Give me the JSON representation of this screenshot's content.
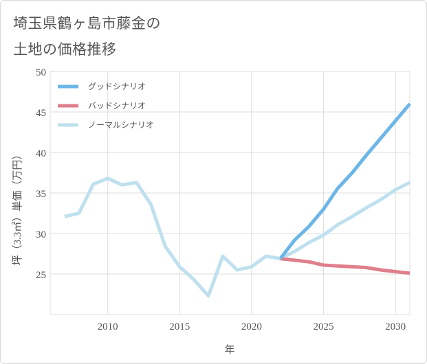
{
  "title_lines": [
    "埼玉県鶴ヶ島市藤金の",
    "土地の価格推移"
  ],
  "chart_data": {
    "type": "line",
    "title": "埼玉県鶴ヶ島市藤金の土地の価格推移",
    "xlabel": "年",
    "ylabel": "坪（3.3㎡）単価（万円）",
    "xlim": [
      2006,
      2031
    ],
    "ylim": [
      20,
      50
    ],
    "xticks": [
      2010,
      2015,
      2020,
      2025,
      2030
    ],
    "yticks": [
      25,
      30,
      35,
      40,
      45,
      50
    ],
    "grid": true,
    "legend_position": "top-left",
    "series": [
      {
        "name": "グッドシナリオ",
        "color": "#6cb6e8",
        "x": [
          2022,
          2023,
          2024,
          2025,
          2026,
          2027,
          2028,
          2029,
          2030,
          2031
        ],
        "values": [
          26.9,
          29.2,
          30.9,
          33.0,
          35.6,
          37.5,
          39.7,
          41.8,
          43.9,
          46.0
        ]
      },
      {
        "name": "バッドシナリオ",
        "color": "#e07f8c",
        "x": [
          2022,
          2023,
          2024,
          2025,
          2026,
          2027,
          2028,
          2029,
          2030,
          2031
        ],
        "values": [
          26.9,
          26.7,
          26.5,
          26.1,
          26.0,
          25.9,
          25.8,
          25.5,
          25.3,
          25.1
        ]
      },
      {
        "name": "ノーマルシナリオ",
        "color": "#bfe0ee",
        "x": [
          2007,
          2008,
          2009,
          2010,
          2011,
          2012,
          2013,
          2014,
          2015,
          2016,
          2017,
          2018,
          2019,
          2020,
          2021,
          2022,
          2023,
          2024,
          2025,
          2026,
          2027,
          2028,
          2029,
          2030,
          2031
        ],
        "values": [
          32.1,
          32.5,
          36.1,
          36.8,
          36.0,
          36.3,
          33.6,
          28.4,
          25.9,
          24.3,
          22.3,
          27.2,
          25.5,
          25.9,
          27.2,
          26.9,
          27.8,
          28.9,
          29.8,
          31.1,
          32.1,
          33.2,
          34.2,
          35.4,
          36.3
        ]
      }
    ]
  }
}
